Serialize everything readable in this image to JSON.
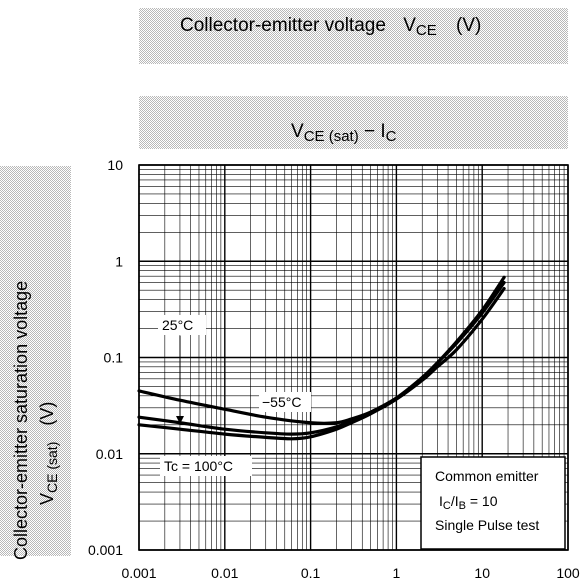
{
  "chart_data": {
    "type": "line",
    "title_main": "V",
    "title_main_sub": "CE (sat)",
    "title_dash": " − I",
    "title_sub2": "C",
    "header_label": "Collector-emitter voltage",
    "header_symbol": "V",
    "header_symbol_sub": "CE",
    "header_unit": "(V)",
    "ylabel_line1": "Collector-emitter saturation voltage",
    "ylabel_line2_symbol": "V",
    "ylabel_line2_sub": "CE (sat)",
    "ylabel_unit": "(V)",
    "x_scale": "log",
    "y_scale": "log",
    "xlim": [
      0.001,
      100
    ],
    "ylim": [
      0.001,
      10
    ],
    "x_ticks": [
      "0.001",
      "0.01",
      "0.1",
      "1",
      "10",
      "100"
    ],
    "y_ticks": [
      "10",
      "1",
      "0.1",
      "0.01",
      "0.001"
    ],
    "grid": true,
    "series": [
      {
        "name": "−55°C",
        "x": [
          0.001,
          0.003,
          0.01,
          0.03,
          0.1,
          0.2,
          0.3,
          0.5,
          1,
          2,
          3,
          5,
          10,
          18
        ],
        "y": [
          0.045,
          0.036,
          0.029,
          0.024,
          0.021,
          0.021,
          0.023,
          0.027,
          0.037,
          0.058,
          0.08,
          0.12,
          0.25,
          0.52
        ]
      },
      {
        "name": "25°C",
        "x": [
          0.001,
          0.003,
          0.01,
          0.03,
          0.06,
          0.1,
          0.2,
          0.3,
          0.5,
          1,
          2,
          3,
          5,
          10,
          18
        ],
        "y": [
          0.024,
          0.021,
          0.018,
          0.0165,
          0.016,
          0.0165,
          0.019,
          0.022,
          0.027,
          0.038,
          0.062,
          0.088,
          0.14,
          0.29,
          0.6
        ]
      },
      {
        "name": "Tc = 100°C",
        "x": [
          0.001,
          0.003,
          0.01,
          0.03,
          0.06,
          0.1,
          0.2,
          0.3,
          0.5,
          1,
          2,
          3,
          5,
          10,
          18
        ],
        "y": [
          0.02,
          0.018,
          0.016,
          0.0148,
          0.0143,
          0.015,
          0.018,
          0.021,
          0.026,
          0.037,
          0.061,
          0.088,
          0.145,
          0.31,
          0.68
        ]
      }
    ],
    "legend_box": {
      "line1": "Common emitter",
      "line2_a": "I",
      "line2_a_sub": "C",
      "line2_b": "/I",
      "line2_b_sub": "B",
      "line2_c": " = 10",
      "line3": "Single Pulse test"
    }
  }
}
